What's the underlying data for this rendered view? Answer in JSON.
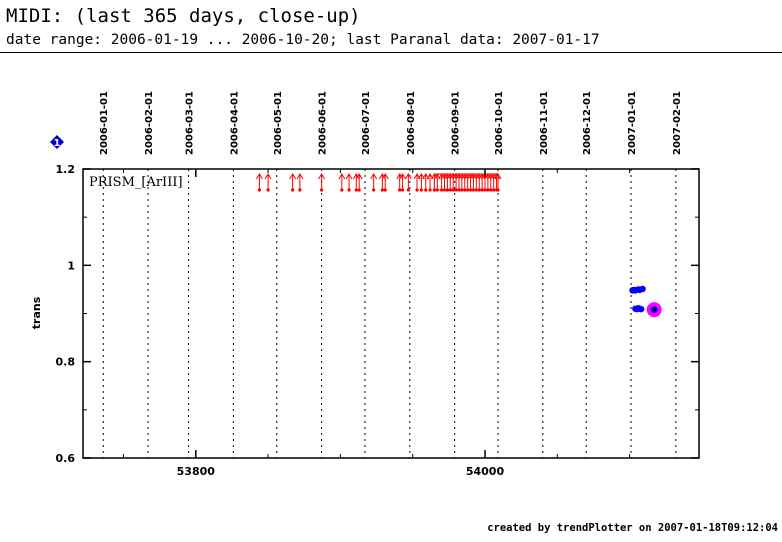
{
  "header": {
    "title": "MIDI: (last 365 days, close-up)",
    "subtitle": "date range: 2006-01-19 ... 2006-10-20; last Paranal data: 2007-01-17"
  },
  "footer": {
    "credit": "created by trendPlotter on 2007-01-18T09:12:04"
  },
  "legend": {
    "label": "PRISM_[ArIII]",
    "marker_glyph": "1"
  },
  "colors": {
    "axes": "#000000",
    "flag_marker": "#0000cc",
    "out_of_range_arrow": "#ff0000",
    "data_point": "#0000ff",
    "last_point_ring": "#ff00ff"
  },
  "chart_data": {
    "type": "scatter",
    "title": "",
    "xlabel": "",
    "ylabel": "trans",
    "xlim": [
      53722,
      54148
    ],
    "ylim": [
      0.6,
      1.2
    ],
    "x_ticks": [
      53800,
      54000
    ],
    "x_tick_labels": [
      "53800",
      "54000"
    ],
    "y_ticks": [
      0.6,
      0.8,
      1.0,
      1.2
    ],
    "y_tick_labels": [
      "0.6",
      "0.8",
      "1",
      "1.2"
    ],
    "date_grid": [
      {
        "label": "2006-01-01",
        "mjd": 53736
      },
      {
        "label": "2006-02-01",
        "mjd": 53767
      },
      {
        "label": "2006-03-01",
        "mjd": 53795
      },
      {
        "label": "2006-04-01",
        "mjd": 53826
      },
      {
        "label": "2006-05-01",
        "mjd": 53856
      },
      {
        "label": "2006-06-01",
        "mjd": 53887
      },
      {
        "label": "2006-07-01",
        "mjd": 53917
      },
      {
        "label": "2006-08-01",
        "mjd": 53948
      },
      {
        "label": "2006-09-01",
        "mjd": 53979
      },
      {
        "label": "2006-10-01",
        "mjd": 54009
      },
      {
        "label": "2006-11-01",
        "mjd": 54040
      },
      {
        "label": "2006-12-01",
        "mjd": 54070
      },
      {
        "label": "2007-01-01",
        "mjd": 54101
      },
      {
        "label": "2007-02-01",
        "mjd": 54132
      }
    ],
    "out_of_range_points_above": [
      53844,
      53850,
      53867,
      53872,
      53887,
      53901,
      53906,
      53911,
      53913,
      53923,
      53929,
      53931,
      53941,
      53943,
      53947,
      53953,
      53956,
      53959,
      53962,
      53965,
      53967,
      53970,
      53972,
      53974,
      53976,
      53978,
      53980,
      53982,
      53984,
      53986,
      53988,
      53990,
      53992,
      53994,
      53996,
      53998,
      54000,
      54002,
      54004,
      54006,
      54008,
      54009
    ],
    "series": [
      {
        "points": [
          {
            "x": 54102,
            "y": 0.948
          },
          {
            "x": 54103,
            "y": 0.949
          },
          {
            "x": 54104,
            "y": 0.948
          },
          {
            "x": 54106,
            "y": 0.95
          },
          {
            "x": 54107,
            "y": 0.949
          },
          {
            "x": 54109,
            "y": 0.951
          },
          {
            "x": 54104,
            "y": 0.91
          },
          {
            "x": 54105,
            "y": 0.909
          },
          {
            "x": 54106,
            "y": 0.911
          },
          {
            "x": 54107,
            "y": 0.91
          },
          {
            "x": 54108,
            "y": 0.909
          }
        ]
      }
    ],
    "last_point": {
      "x": 54117,
      "y": 0.908
    }
  }
}
